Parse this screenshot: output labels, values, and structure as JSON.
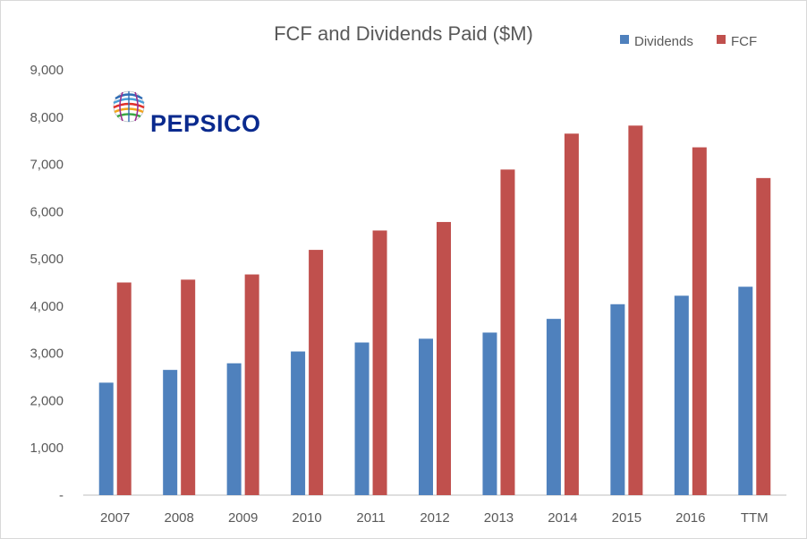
{
  "logo": {
    "text": "PEPSICO"
  },
  "colors": {
    "dividends": "#4f81bd",
    "fcf": "#c0504d",
    "axis": "#bfbfbf",
    "text": "#595959"
  },
  "chart_data": {
    "type": "bar",
    "title": "FCF and Dividends Paid ($M)",
    "categories": [
      "2007",
      "2008",
      "2009",
      "2010",
      "2011",
      "2012",
      "2013",
      "2014",
      "2015",
      "2016",
      "TTM"
    ],
    "series": [
      {
        "name": "Dividends",
        "values": [
          2380,
          2650,
          2790,
          3040,
          3230,
          3310,
          3440,
          3730,
          4040,
          4220,
          4410
        ]
      },
      {
        "name": "FCF",
        "values": [
          4500,
          4560,
          4670,
          5190,
          5600,
          5780,
          6890,
          7650,
          7820,
          7360,
          6710
        ]
      }
    ],
    "xlabel": "",
    "ylabel": "",
    "ylim": [
      0,
      9000
    ],
    "yticks": [
      "-",
      "1,000",
      "2,000",
      "3,000",
      "4,000",
      "5,000",
      "6,000",
      "7,000",
      "8,000",
      "9,000"
    ],
    "grid": false,
    "legend_position": "top-right"
  }
}
